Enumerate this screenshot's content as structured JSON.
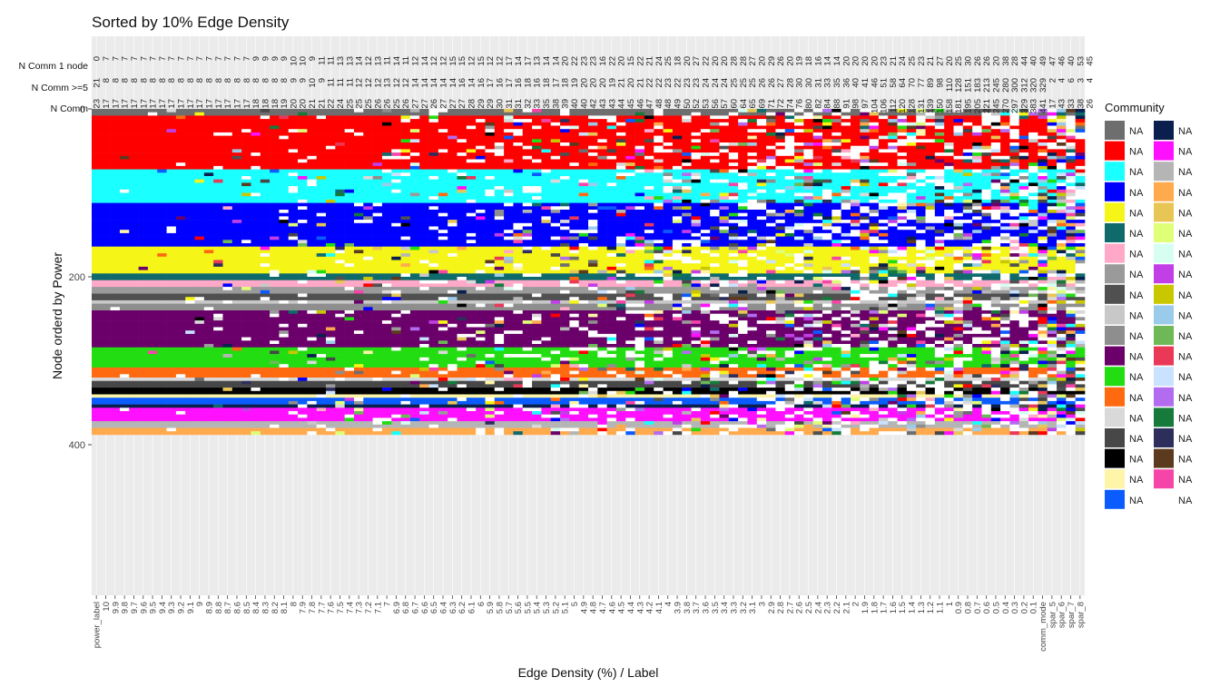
{
  "chart_data": {
    "type": "heatmap",
    "title": "Sorted by 10% Edge Density",
    "xlabel": "Edge Density (%) / Label",
    "ylabel": "Node orderd by Power",
    "y_ticks": [
      0,
      200,
      400
    ],
    "ylim": [
      0,
      560
    ],
    "x_categories": [
      "power_label",
      "10",
      "9.9",
      "9.8",
      "9.7",
      "9.6",
      "9.5",
      "9.4",
      "9.3",
      "9.2",
      "9.1",
      "9",
      "8.9",
      "8.8",
      "8.7",
      "8.6",
      "8.5",
      "8.4",
      "8.3",
      "8.2",
      "8.1",
      "8",
      "7.9",
      "7.8",
      "7.7",
      "7.6",
      "7.5",
      "7.4",
      "7.3",
      "7.2",
      "7.1",
      "7",
      "6.9",
      "6.8",
      "6.7",
      "6.6",
      "6.5",
      "6.4",
      "6.3",
      "6.2",
      "6.1",
      "6",
      "5.9",
      "5.8",
      "5.7",
      "5.6",
      "5.5",
      "5.4",
      "5.3",
      "5.2",
      "5.1",
      "5",
      "4.9",
      "4.8",
      "4.7",
      "4.6",
      "4.5",
      "4.4",
      "4.3",
      "4.2",
      "4.1",
      "4",
      "3.9",
      "3.8",
      "3.7",
      "3.6",
      "3.5",
      "3.4",
      "3.3",
      "3.2",
      "3.1",
      "3",
      "2.9",
      "2.8",
      "2.7",
      "2.6",
      "2.5",
      "2.4",
      "2.3",
      "2.2",
      "2.1",
      "2",
      "1.9",
      "1.8",
      "1.7",
      "1.6",
      "1.5",
      "1.4",
      "1.3",
      "1.2",
      "1.1",
      "1",
      "0.9",
      "0.8",
      "0.7",
      "0.6",
      "0.5",
      "0.4",
      "0.3",
      "0.2",
      "0.1",
      "comm_mode",
      "spar_5",
      "spar_6",
      "spar_7",
      "spar_8"
    ],
    "top_rows": [
      {
        "name": "N Comm 1 node",
        "values": [
          "0",
          "7",
          "7",
          "7",
          "7",
          "7",
          "7",
          "7",
          "7",
          "7",
          "7",
          "7",
          "7",
          "7",
          "7",
          "7",
          "7",
          "9",
          "9",
          "9",
          "9",
          "10",
          "10",
          "9",
          "11",
          "11",
          "13",
          "13",
          "14",
          "12",
          "13",
          "11",
          "14",
          "11",
          "12",
          "14",
          "12",
          "12",
          "15",
          "15",
          "12",
          "15",
          "12",
          "12",
          "17",
          "14",
          "17",
          "13",
          "14",
          "14",
          "20",
          "22",
          "23",
          "23",
          "16",
          "22",
          "20",
          "15",
          "22",
          "21",
          "24",
          "25",
          "18",
          "20",
          "27",
          "22",
          "20",
          "20",
          "28",
          "28",
          "27",
          "20",
          "29",
          "26",
          "20",
          "19",
          "18",
          "16",
          "14",
          "14",
          "20",
          "20",
          "20",
          "20",
          "23",
          "21",
          "24",
          "25",
          "23",
          "21",
          "27",
          "20",
          "25",
          "30",
          "26",
          "26",
          "20",
          "38",
          "28",
          "44",
          "40",
          "49",
          "47",
          "46",
          "40",
          "53",
          "45"
        ]
      },
      {
        "name": "N Comm >=5",
        "values": [
          "21",
          "8",
          "8",
          "8",
          "8",
          "8",
          "8",
          "8",
          "8",
          "8",
          "8",
          "8",
          "8",
          "8",
          "8",
          "8",
          "8",
          "8",
          "8",
          "8",
          "8",
          "9",
          "9",
          "10",
          "9",
          "11",
          "11",
          "11",
          "12",
          "12",
          "12",
          "13",
          "12",
          "12",
          "14",
          "14",
          "14",
          "14",
          "14",
          "16",
          "14",
          "16",
          "17",
          "16",
          "17",
          "16",
          "18",
          "16",
          "18",
          "17",
          "18",
          "19",
          "20",
          "20",
          "20",
          "19",
          "21",
          "20",
          "21",
          "22",
          "22",
          "23",
          "22",
          "23",
          "23",
          "24",
          "24",
          "24",
          "25",
          "25",
          "25",
          "26",
          "26",
          "27",
          "28",
          "30",
          "30",
          "31",
          "33",
          "35",
          "36",
          "40",
          "41",
          "46",
          "51",
          "58",
          "64",
          "70",
          "77",
          "89",
          "98",
          "110",
          "128",
          "151",
          "183",
          "213",
          "245",
          "280",
          "300",
          "312",
          "320",
          "329",
          "2",
          "4",
          "6",
          "3",
          "4"
        ]
      },
      {
        "name": "N Comm",
        "values": [
          "23",
          "17",
          "17",
          "17",
          "17",
          "17",
          "17",
          "17",
          "17",
          "17",
          "17",
          "17",
          "17",
          "17",
          "17",
          "17",
          "17",
          "18",
          "18",
          "18",
          "19",
          "20",
          "20",
          "21",
          "21",
          "22",
          "24",
          "25",
          "25",
          "25",
          "26",
          "26",
          "25",
          "26",
          "27",
          "27",
          "26",
          "27",
          "27",
          "27",
          "28",
          "29",
          "29",
          "30",
          "31",
          "31",
          "32",
          "33",
          "35",
          "38",
          "39",
          "40",
          "40",
          "42",
          "43",
          "43",
          "44",
          "45",
          "46",
          "47",
          "48",
          "48",
          "49",
          "50",
          "52",
          "53",
          "56",
          "57",
          "60",
          "64",
          "65",
          "69",
          "71",
          "72",
          "74",
          "76",
          "80",
          "82",
          "84",
          "88",
          "91",
          "98",
          "97",
          "104",
          "106",
          "112",
          "120",
          "128",
          "131",
          "139",
          "150",
          "158",
          "181",
          "195",
          "205",
          "221",
          "245",
          "270",
          "297",
          "329",
          "383",
          "441",
          "17",
          "43",
          "33",
          "38",
          "26"
        ]
      }
    ],
    "legend": {
      "title": "Community",
      "entries": [
        {
          "label": "NA",
          "color": "#6e6e6e"
        },
        {
          "label": "NA",
          "color": "#ff0000"
        },
        {
          "label": "NA",
          "color": "#1affff"
        },
        {
          "label": "NA",
          "color": "#0000ff"
        },
        {
          "label": "NA",
          "color": "#f5f517"
        },
        {
          "label": "NA",
          "color": "#0f6b6b"
        },
        {
          "label": "NA",
          "color": "#ffa8c8"
        },
        {
          "label": "NA",
          "color": "#9a9a9a"
        },
        {
          "label": "NA",
          "color": "#505050"
        },
        {
          "label": "NA",
          "color": "#c8c8c8"
        },
        {
          "label": "NA",
          "color": "#8e8e8e"
        },
        {
          "label": "NA",
          "color": "#6b006b"
        },
        {
          "label": "NA",
          "color": "#22dd11"
        },
        {
          "label": "NA",
          "color": "#ff6a10"
        },
        {
          "label": "NA",
          "color": "#d9d9d9"
        },
        {
          "label": "NA",
          "color": "#474747"
        },
        {
          "label": "NA",
          "color": "#000000"
        },
        {
          "label": "NA",
          "color": "#fff5a8"
        },
        {
          "label": "NA",
          "color": "#0a5cff"
        },
        {
          "label": "NA",
          "color": "#0a1f4d"
        },
        {
          "label": "NA",
          "color": "#ff10ff"
        },
        {
          "label": "NA",
          "color": "#b5b5b5"
        },
        {
          "label": "NA",
          "color": "#ffaa4d"
        },
        {
          "label": "NA",
          "color": "#e8c655"
        },
        {
          "label": "NA",
          "color": "#dfff77"
        },
        {
          "label": "NA",
          "color": "#d6fff2"
        },
        {
          "label": "NA",
          "color": "#c23ee6"
        },
        {
          "label": "NA",
          "color": "#c9c800"
        },
        {
          "label": "NA",
          "color": "#9acbea"
        },
        {
          "label": "NA",
          "color": "#6eb857"
        },
        {
          "label": "NA",
          "color": "#ea3857"
        },
        {
          "label": "NA",
          "color": "#c8e2ff"
        },
        {
          "label": "NA",
          "color": "#b36cf0"
        },
        {
          "label": "NA",
          "color": "#157a3a"
        },
        {
          "label": "NA",
          "color": "#2e2e5c"
        },
        {
          "label": "NA",
          "color": "#5c3a1e"
        },
        {
          "label": "NA",
          "color": "#f545a8"
        },
        {
          "label": "NA",
          "color": "#ffffff"
        }
      ]
    },
    "power_label_blocks": [
      {
        "from": 0,
        "to": 7,
        "color": "#6e6e6e"
      },
      {
        "from": 7,
        "to": 70,
        "color": "#ff0000"
      },
      {
        "from": 70,
        "to": 110,
        "color": "#1affff"
      },
      {
        "from": 110,
        "to": 164,
        "color": "#0000ff"
      },
      {
        "from": 164,
        "to": 196,
        "color": "#f5f517"
      },
      {
        "from": 196,
        "to": 204,
        "color": "#0f6b6b"
      },
      {
        "from": 204,
        "to": 212,
        "color": "#ffa8c8"
      },
      {
        "from": 212,
        "to": 220,
        "color": "#9a9a9a"
      },
      {
        "from": 220,
        "to": 226,
        "color": "#505050"
      },
      {
        "from": 226,
        "to": 232,
        "color": "#c8c8c8"
      },
      {
        "from": 232,
        "to": 238,
        "color": "#8e8e8e"
      },
      {
        "from": 238,
        "to": 282,
        "color": "#6b006b"
      },
      {
        "from": 282,
        "to": 306,
        "color": "#22dd11"
      },
      {
        "from": 306,
        "to": 318,
        "color": "#ff6a10"
      },
      {
        "from": 318,
        "to": 324,
        "color": "#d9d9d9"
      },
      {
        "from": 324,
        "to": 330,
        "color": "#474747"
      },
      {
        "from": 330,
        "to": 338,
        "color": "#000000"
      },
      {
        "from": 338,
        "to": 342,
        "color": "#fff5a8"
      },
      {
        "from": 342,
        "to": 349,
        "color": "#0a5cff"
      },
      {
        "from": 349,
        "to": 354,
        "color": "#0a1f4d"
      },
      {
        "from": 354,
        "to": 372,
        "color": "#ff10ff"
      },
      {
        "from": 372,
        "to": 378,
        "color": "#b5b5b5"
      },
      {
        "from": 378,
        "to": 386,
        "color": "#ffaa4d"
      }
    ]
  }
}
